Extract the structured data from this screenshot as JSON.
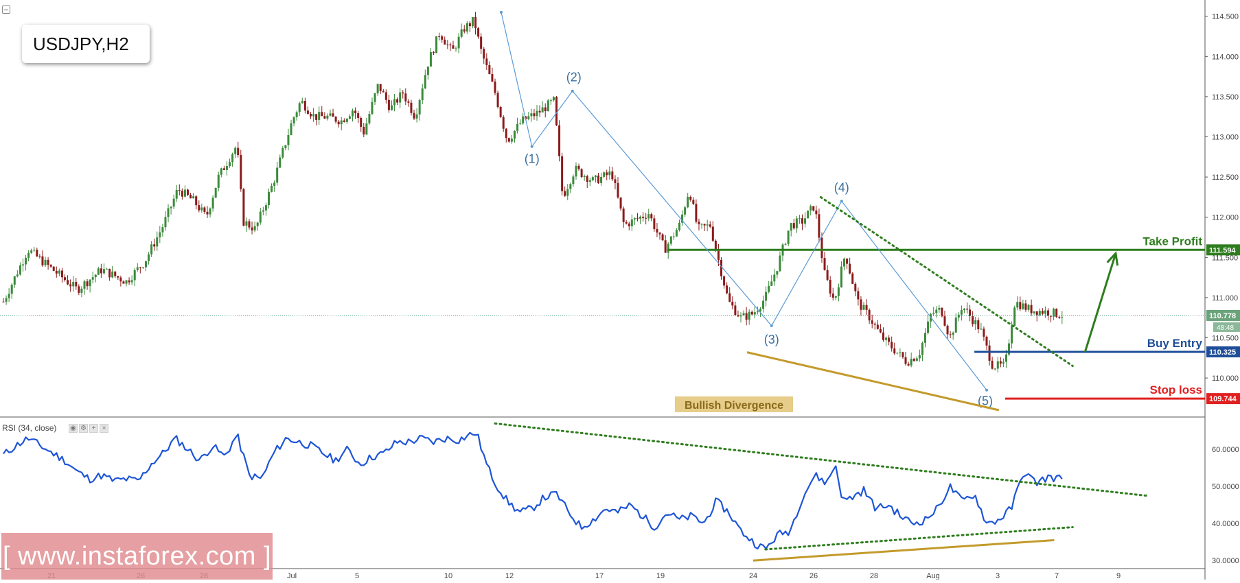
{
  "header": {
    "symbol": "USDJPY,H2"
  },
  "watermark": {
    "text": "[ www.instaforex.com ]"
  },
  "rsi_panel": {
    "label": "RSI (34, close)"
  },
  "colors": {
    "bull": "#3a8a3a",
    "bear": "#8b1a1a",
    "wave": "#5b9bd5",
    "take_profit": "#2e7d1e",
    "buy_entry": "#1f4e99",
    "stop_loss": "#e02020",
    "divergence": "#c39a2b",
    "rsi_line": "#1e55d6"
  },
  "chart_data": [
    {
      "type": "candlestick",
      "title": "USDJPY,H2",
      "x_tick_labels": [
        "21",
        "26",
        "28",
        "Jul",
        "5",
        "10",
        "12",
        "17",
        "19",
        "24",
        "26",
        "28",
        "Aug",
        "3",
        "7",
        "9"
      ],
      "ylim": [
        109.6,
        114.6
      ],
      "y_ticks": [
        "114.500",
        "114.000",
        "113.500",
        "113.000",
        "112.500",
        "112.000",
        "111.500",
        "111.000",
        "110.500",
        "110.000"
      ],
      "current_price": "110.778",
      "countdown": "48:48",
      "price_path": [
        [
          0,
          110.95
        ],
        [
          2,
          111.6
        ],
        [
          4,
          111.35
        ],
        [
          6,
          111.1
        ],
        [
          8,
          111.35
        ],
        [
          10,
          111.2
        ],
        [
          11.5,
          111.45
        ],
        [
          13,
          111.9
        ],
        [
          14.2,
          112.35
        ],
        [
          15.5,
          112.2
        ],
        [
          16.5,
          112.0
        ],
        [
          17.5,
          112.5
        ],
        [
          19,
          112.9
        ],
        [
          19.5,
          111.95
        ],
        [
          20.5,
          111.85
        ],
        [
          22,
          112.45
        ],
        [
          23.5,
          113.2
        ],
        [
          24.2,
          113.45
        ],
        [
          25.3,
          113.25
        ],
        [
          26.3,
          113.25
        ],
        [
          27.5,
          113.2
        ],
        [
          28.5,
          113.35
        ],
        [
          29.3,
          113.05
        ],
        [
          30.5,
          113.65
        ],
        [
          31.5,
          113.35
        ],
        [
          32.5,
          113.55
        ],
        [
          33.5,
          113.25
        ],
        [
          34.5,
          113.9
        ],
        [
          35.5,
          114.3
        ],
        [
          36.5,
          114.05
        ],
        [
          37.5,
          114.35
        ],
        [
          38.3,
          114.45
        ],
        [
          38.8,
          114.1
        ],
        [
          40,
          113.55
        ],
        [
          41,
          112.95
        ],
        [
          42.2,
          113.2
        ],
        [
          43.5,
          113.3
        ],
        [
          44.8,
          113.45
        ],
        [
          45.5,
          112.25
        ],
        [
          46.5,
          112.6
        ],
        [
          48,
          112.45
        ],
        [
          49.5,
          112.55
        ],
        [
          50.5,
          111.9
        ],
        [
          52.5,
          112.05
        ],
        [
          53.8,
          111.6
        ],
        [
          55,
          111.9
        ],
        [
          55.8,
          112.35
        ],
        [
          56.5,
          111.85
        ],
        [
          57.5,
          111.9
        ],
        [
          59,
          110.95
        ],
        [
          60,
          110.75
        ],
        [
          61,
          110.8
        ],
        [
          62,
          111.0
        ],
        [
          63,
          111.4
        ],
        [
          64,
          111.9
        ],
        [
          65,
          111.95
        ],
        [
          66,
          112.15
        ],
        [
          66.8,
          111.3
        ],
        [
          67.6,
          110.95
        ],
        [
          68.5,
          111.55
        ],
        [
          69.5,
          110.95
        ],
        [
          70.5,
          110.75
        ],
        [
          71.5,
          110.5
        ],
        [
          72.5,
          110.35
        ],
        [
          73.5,
          110.2
        ],
        [
          74.5,
          110.3
        ],
        [
          75.5,
          110.8
        ],
        [
          76.3,
          110.85
        ],
        [
          77,
          110.5
        ],
        [
          78,
          110.9
        ],
        [
          79.5,
          110.6
        ],
        [
          80.5,
          110.15
        ],
        [
          81.5,
          110.15
        ],
        [
          82.3,
          110.95
        ],
        [
          83.5,
          110.85
        ],
        [
          85,
          110.82
        ],
        [
          86.3,
          110.78
        ]
      ],
      "annotations": [
        {
          "type": "level",
          "label": "Take Profit",
          "value": 111.594,
          "price_label": "111.594",
          "from_x": 54
        },
        {
          "type": "level",
          "label": "Buy Entry",
          "value": 110.325,
          "price_label": "110.325",
          "from_x": 79
        },
        {
          "type": "level",
          "label": "Stop loss",
          "value": 109.744,
          "price_label": "109.744",
          "from_x": 81.5
        },
        {
          "type": "target_arrow",
          "from": [
            88,
            110.32
          ],
          "to": [
            90.5,
            111.55
          ]
        },
        {
          "type": "elliott_wave",
          "labels": [
            "(1)",
            "(2)",
            "(3)",
            "(4)",
            "(5)"
          ],
          "points": [
            [
              40.5,
              114.55
            ],
            [
              43,
              112.88
            ],
            [
              46.3,
              113.57
            ],
            [
              62.5,
              110.65
            ],
            [
              68.2,
              112.2
            ],
            [
              80,
              109.85
            ]
          ]
        },
        {
          "type": "trend_dotted",
          "from": [
            66.5,
            112.25
          ],
          "to": [
            87,
            110.15
          ]
        },
        {
          "type": "divergence_line",
          "from": [
            60.5,
            110.32
          ],
          "to": [
            81,
            109.6
          ]
        },
        {
          "type": "text_box",
          "text": "Bullish Divergence"
        }
      ]
    },
    {
      "type": "line",
      "title": "RSI (34, close)",
      "ylim": [
        28,
        68
      ],
      "y_ticks": [
        "60.0000",
        "50.0000",
        "40.0000",
        "30.0000"
      ],
      "series": [
        {
          "values": [
            [
              0,
              58.5
            ],
            [
              1,
              61
            ],
            [
              2,
              63
            ],
            [
              3,
              61
            ],
            [
              4,
              59
            ],
            [
              5,
              57
            ],
            [
              6,
              54
            ],
            [
              7,
              52
            ],
            [
              8,
              53
            ],
            [
              9,
              51.5
            ],
            [
              10,
              52
            ],
            [
              11,
              51.5
            ],
            [
              12,
              56
            ],
            [
              13,
              59
            ],
            [
              14,
              63
            ],
            [
              15,
              60
            ],
            [
              16,
              57
            ],
            [
              17,
              61
            ],
            [
              18,
              58
            ],
            [
              19,
              64
            ],
            [
              20,
              53
            ],
            [
              21,
              52
            ],
            [
              22,
              59
            ],
            [
              23,
              63
            ],
            [
              24,
              62
            ],
            [
              25,
              61
            ],
            [
              26,
              59
            ],
            [
              27,
              57
            ],
            [
              28,
              60
            ],
            [
              29,
              56
            ],
            [
              30,
              58
            ],
            [
              31,
              59
            ],
            [
              32,
              62
            ],
            [
              33,
              62
            ],
            [
              34,
              63
            ],
            [
              35,
              62
            ],
            [
              36,
              63
            ],
            [
              37,
              62.5
            ],
            [
              38,
              64
            ],
            [
              38.5,
              64.5
            ],
            [
              39.3,
              56
            ],
            [
              40,
              51
            ],
            [
              41,
              46
            ],
            [
              42,
              43
            ],
            [
              43,
              44
            ],
            [
              44,
              47
            ],
            [
              45,
              48
            ],
            [
              46,
              43
            ],
            [
              47,
              39
            ],
            [
              48,
              41
            ],
            [
              49,
              44
            ],
            [
              50,
              43
            ],
            [
              51,
              45
            ],
            [
              52,
              42
            ],
            [
              53,
              39
            ],
            [
              54,
              43
            ],
            [
              55,
              41
            ],
            [
              56,
              42
            ],
            [
              57,
              40
            ],
            [
              58,
              46
            ],
            [
              59,
              43
            ],
            [
              60,
              38
            ],
            [
              61,
              35
            ],
            [
              62,
              33
            ],
            [
              63,
              37
            ],
            [
              64,
              38
            ],
            [
              65,
              47
            ],
            [
              66,
              53
            ],
            [
              67,
              51
            ],
            [
              67.7,
              56
            ],
            [
              68.3,
              46
            ],
            [
              69,
              47
            ],
            [
              70,
              49
            ],
            [
              71,
              44
            ],
            [
              72,
              45
            ],
            [
              73,
              42
            ],
            [
              74,
              40
            ],
            [
              75,
              41
            ],
            [
              76,
              44
            ],
            [
              77,
              50
            ],
            [
              78,
              46
            ],
            [
              79,
              48
            ],
            [
              80,
              40
            ],
            [
              81,
              41
            ],
            [
              82,
              44
            ],
            [
              83,
              54
            ],
            [
              84,
              51
            ],
            [
              85,
              52.5
            ],
            [
              86.3,
              52
            ]
          ]
        }
      ],
      "annotations": [
        {
          "type": "trend_dotted",
          "from": [
            40,
            67
          ],
          "to": [
            93,
            47.5
          ]
        },
        {
          "type": "trend_dotted",
          "from": [
            62,
            33
          ],
          "to": [
            87,
            39
          ]
        },
        {
          "type": "divergence_line",
          "from": [
            61,
            30
          ],
          "to": [
            85.5,
            35.5
          ]
        }
      ]
    }
  ]
}
